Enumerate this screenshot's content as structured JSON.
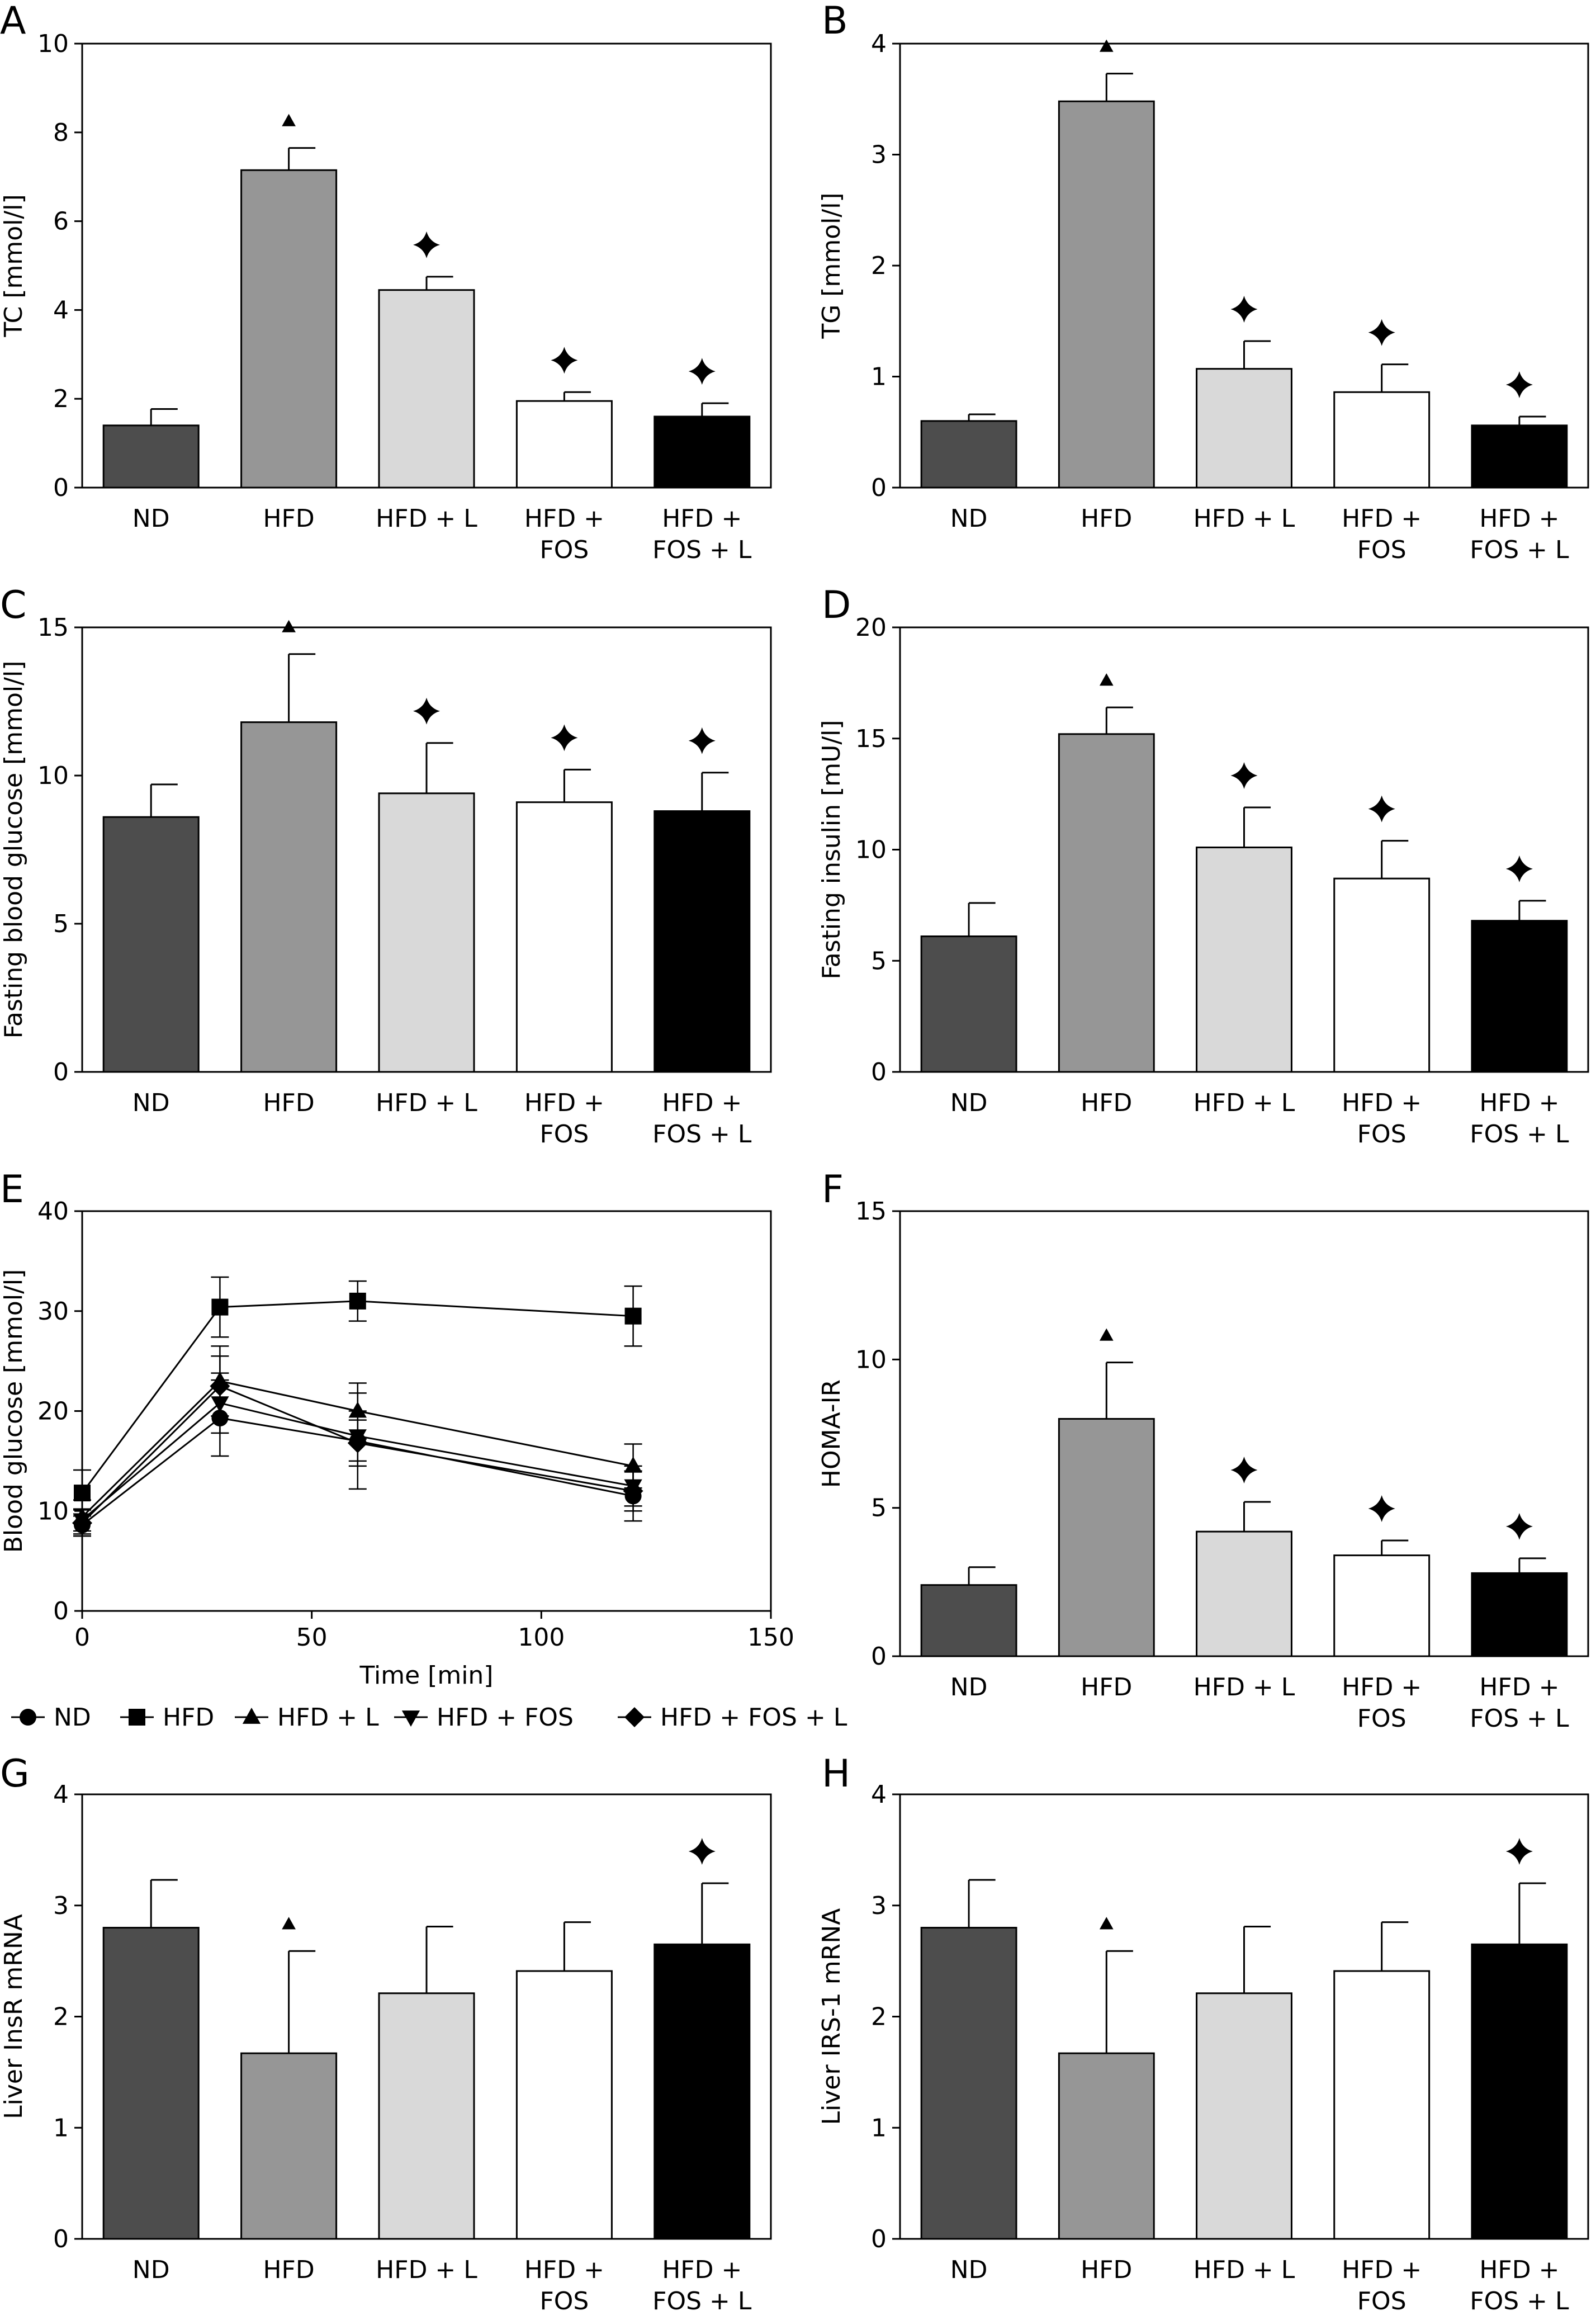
{
  "page": {
    "background": "#ffffff"
  },
  "colors": {
    "ND": "#4d4d4d",
    "HFD": "#969696",
    "HFD + L": "#d9d9d9",
    "HFD + FOS": "#ffffff",
    "HFD + FOS + L": "#000000"
  },
  "markers": {
    "hfd_vs_nd": "triangle",
    "treatment_vs_hfd": "four-point-star"
  },
  "chart_data": [
    {
      "panel": "A",
      "type": "bar",
      "ylabel": "TC [mmol/l]",
      "ylim": [
        0,
        10
      ],
      "yticks": [
        0,
        2,
        4,
        6,
        8,
        10
      ],
      "categories": [
        [
          "ND"
        ],
        [
          "HFD"
        ],
        [
          "HFD + L"
        ],
        [
          "HFD +",
          "FOS"
        ],
        [
          "HFD +",
          "FOS + L"
        ]
      ],
      "values": [
        1.4,
        7.15,
        4.45,
        1.95,
        1.6
      ],
      "errors": [
        0.37,
        0.5,
        0.3,
        0.2,
        0.3
      ],
      "marks": [
        "",
        "triangle",
        "star",
        "star",
        "star"
      ]
    },
    {
      "panel": "B",
      "type": "bar",
      "ylabel": "TG [mmol/l]",
      "ylim": [
        0,
        4
      ],
      "yticks": [
        0,
        1,
        2,
        3,
        4
      ],
      "categories": [
        [
          "ND"
        ],
        [
          "HFD"
        ],
        [
          "HFD + L"
        ],
        [
          "HFD +",
          "FOS"
        ],
        [
          "HFD +",
          "FOS + L"
        ]
      ],
      "values": [
        0.6,
        3.48,
        1.07,
        0.86,
        0.56
      ],
      "errors": [
        0.06,
        0.25,
        0.25,
        0.25,
        0.08
      ],
      "marks": [
        "",
        "triangle",
        "star",
        "star",
        "star"
      ]
    },
    {
      "panel": "C",
      "type": "bar",
      "ylabel": "Fasting blood glucose [mmol/l]",
      "ylim": [
        0,
        15
      ],
      "yticks": [
        0,
        5,
        10,
        15
      ],
      "categories": [
        [
          "ND"
        ],
        [
          "HFD"
        ],
        [
          "HFD + L"
        ],
        [
          "HFD +",
          "FOS"
        ],
        [
          "HFD +",
          "FOS + L"
        ]
      ],
      "values": [
        8.6,
        11.8,
        9.4,
        9.1,
        8.8
      ],
      "errors": [
        1.1,
        2.3,
        1.7,
        1.1,
        1.3
      ],
      "marks": [
        "",
        "triangle",
        "star",
        "star",
        "star"
      ]
    },
    {
      "panel": "D",
      "type": "bar",
      "ylabel": "Fasting insulin [mU/l]",
      "ylim": [
        0,
        20
      ],
      "yticks": [
        0,
        5,
        10,
        15,
        20
      ],
      "categories": [
        [
          "ND"
        ],
        [
          "HFD"
        ],
        [
          "HFD + L"
        ],
        [
          "HFD +",
          "FOS"
        ],
        [
          "HFD +",
          "FOS + L"
        ]
      ],
      "values": [
        6.1,
        15.2,
        10.1,
        8.7,
        6.8
      ],
      "errors": [
        1.5,
        1.2,
        1.8,
        1.7,
        0.9
      ],
      "marks": [
        "",
        "triangle",
        "star",
        "star",
        "star"
      ]
    },
    {
      "panel": "E",
      "type": "line",
      "xlabel": "Time [min]",
      "ylabel": "Blood glucose [mmol/l]",
      "xlim": [
        0,
        150
      ],
      "ylim": [
        0,
        40
      ],
      "xticks": [
        0,
        50,
        100,
        150
      ],
      "yticks": [
        0,
        10,
        20,
        30,
        40
      ],
      "x": [
        0,
        30,
        60,
        120
      ],
      "series": [
        {
          "name": "ND",
          "marker": "circle",
          "values": [
            8.6,
            19.3,
            17.0,
            11.5
          ],
          "errors": [
            1.1,
            3.8,
            4.8,
            2.5
          ]
        },
        {
          "name": "HFD",
          "marker": "square",
          "values": [
            11.8,
            30.4,
            31.0,
            29.5
          ],
          "errors": [
            2.3,
            3.0,
            2.0,
            3.0
          ]
        },
        {
          "name": "HFD + L",
          "marker": "triangle-up",
          "values": [
            9.4,
            23.0,
            20.0,
            14.5
          ],
          "errors": [
            1.7,
            3.5,
            2.8,
            2.2
          ]
        },
        {
          "name": "HFD + FOS",
          "marker": "triangle-down",
          "values": [
            9.1,
            20.8,
            17.5,
            12.5
          ],
          "errors": [
            1.1,
            3.0,
            2.5,
            2.0
          ]
        },
        {
          "name": "HFD + FOS + L",
          "marker": "diamond",
          "values": [
            8.8,
            22.5,
            16.8,
            12.0
          ],
          "errors": [
            1.3,
            3.0,
            2.3,
            2.0
          ]
        }
      ],
      "legend_position": "bottom"
    },
    {
      "panel": "F",
      "type": "bar",
      "ylabel": "HOMA-IR",
      "ylim": [
        0,
        15
      ],
      "yticks": [
        0,
        5,
        10,
        15
      ],
      "categories": [
        [
          "ND"
        ],
        [
          "HFD"
        ],
        [
          "HFD + L"
        ],
        [
          "HFD +",
          "FOS"
        ],
        [
          "HFD +",
          "FOS + L"
        ]
      ],
      "values": [
        2.4,
        8.0,
        4.2,
        3.4,
        2.8
      ],
      "errors": [
        0.6,
        1.9,
        1.0,
        0.5,
        0.5
      ],
      "marks": [
        "",
        "triangle",
        "star",
        "star",
        "star"
      ]
    },
    {
      "panel": "G",
      "type": "bar",
      "ylabel": "Liver InsR mRNA",
      "ylim": [
        0,
        4
      ],
      "yticks": [
        0,
        1,
        2,
        3,
        4
      ],
      "categories": [
        [
          "ND"
        ],
        [
          "HFD"
        ],
        [
          "HFD + L"
        ],
        [
          "HFD +",
          "FOS"
        ],
        [
          "HFD +",
          "FOS + L"
        ]
      ],
      "values": [
        2.8,
        1.67,
        2.21,
        2.41,
        2.65
      ],
      "errors": [
        0.43,
        0.92,
        0.6,
        0.44,
        0.55
      ],
      "marks": [
        "",
        "triangle",
        "",
        "",
        "star"
      ]
    },
    {
      "panel": "H",
      "type": "bar",
      "ylabel": "Liver IRS-1 mRNA",
      "ylim": [
        0,
        4
      ],
      "yticks": [
        0,
        1,
        2,
        3,
        4
      ],
      "categories": [
        [
          "ND"
        ],
        [
          "HFD"
        ],
        [
          "HFD + L"
        ],
        [
          "HFD +",
          "FOS"
        ],
        [
          "HFD +",
          "FOS + L"
        ]
      ],
      "values": [
        2.8,
        1.67,
        2.21,
        2.41,
        2.65
      ],
      "errors": [
        0.43,
        0.92,
        0.6,
        0.44,
        0.55
      ],
      "marks": [
        "",
        "triangle",
        "",
        "",
        "star"
      ]
    }
  ]
}
